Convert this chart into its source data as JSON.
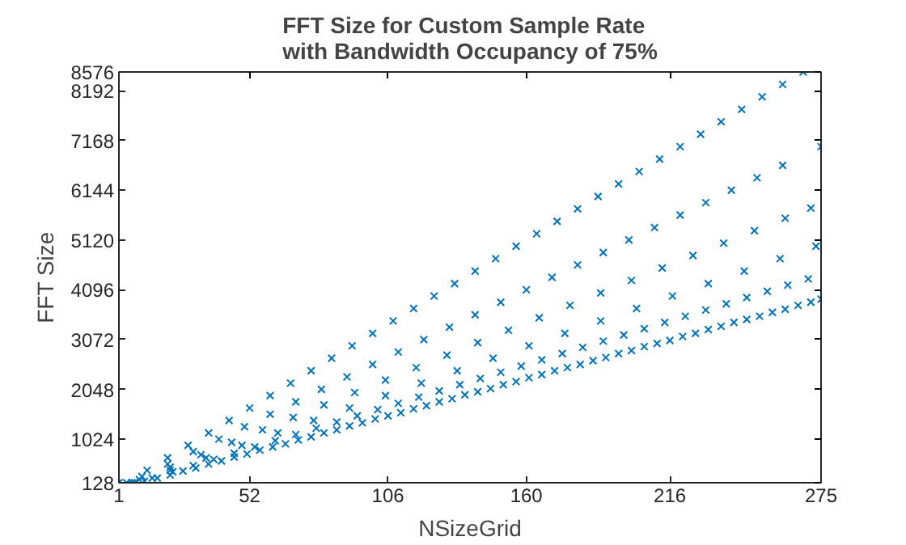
{
  "chart_data": {
    "type": "scatter",
    "title": "FFT Size for Custom Sample Rate\nwith Bandwidth Occupancy of 75%",
    "xlabel": "NSizeGrid",
    "ylabel": "FFT Size",
    "xlim": [
      1,
      275
    ],
    "ylim": [
      128,
      8576
    ],
    "xticks": [
      1,
      52,
      106,
      160,
      216,
      275
    ],
    "yticks": [
      128,
      1024,
      2048,
      3072,
      4096,
      5120,
      6144,
      7168,
      8192,
      8576
    ],
    "grid": false,
    "marker": "cross",
    "series": [
      {
        "color": "#0072bd",
        "x": [
          4,
          12,
          20,
          28,
          36,
          44,
          52,
          60,
          68,
          76,
          84,
          92,
          100,
          108,
          116,
          124,
          132,
          140,
          148,
          156,
          164,
          172,
          180,
          188,
          196,
          204,
          212,
          220,
          228,
          236,
          244,
          252,
          260,
          268,
          10,
          20,
          30,
          40,
          50,
          60,
          70,
          80,
          90,
          100,
          110,
          120,
          130,
          140,
          150,
          160,
          170,
          180,
          190,
          200,
          210,
          220,
          230,
          240,
          250,
          260,
          275,
          9,
          21,
          33,
          45,
          57,
          69,
          81,
          93,
          105,
          117,
          129,
          141,
          153,
          165,
          177,
          189,
          201,
          213,
          225,
          237,
          249,
          261,
          271,
          7,
          21,
          35,
          49,
          63,
          77,
          91,
          105,
          119,
          133,
          147,
          161,
          175,
          189,
          203,
          217,
          231,
          245,
          259,
          273,
          6,
          14,
          22,
          30,
          38,
          46,
          54,
          62,
          70,
          78,
          86,
          94,
          102,
          110,
          118,
          126,
          134,
          142,
          150,
          158,
          166,
          174,
          182,
          190,
          198,
          206,
          214,
          222,
          230,
          238,
          246,
          254,
          262,
          270,
          1,
          6,
          11,
          16,
          21,
          26,
          31,
          36,
          41,
          46,
          51,
          56,
          61,
          66,
          71,
          76,
          81,
          86,
          91,
          96,
          101,
          106,
          111,
          116,
          121,
          126,
          131,
          136,
          141,
          146,
          151,
          156,
          161,
          166,
          171,
          176,
          181,
          186,
          191,
          196,
          201,
          206,
          211,
          216,
          221,
          226,
          231,
          236,
          241,
          246,
          251,
          256,
          261,
          266,
          271,
          275
        ],
        "values": [
          128,
          384,
          640,
          896,
          1152,
          1408,
          1664,
          1920,
          2176,
          2432,
          2688,
          2944,
          3200,
          3456,
          3712,
          3968,
          4224,
          4480,
          4736,
          4992,
          5248,
          5504,
          5760,
          6016,
          6272,
          6528,
          6784,
          7040,
          7296,
          7552,
          7808,
          8064,
          8320,
          8576,
          256,
          512,
          768,
          1024,
          1280,
          1536,
          1792,
          2048,
          2304,
          2560,
          2816,
          3072,
          3328,
          3584,
          3840,
          4096,
          4352,
          4608,
          4864,
          5120,
          5376,
          5632,
          5888,
          6144,
          6400,
          6656,
          7040,
          192,
          448,
          704,
          960,
          1216,
          1472,
          1728,
          1984,
          2240,
          2496,
          2752,
          3008,
          3264,
          3520,
          3776,
          4032,
          4288,
          4544,
          4800,
          5056,
          5312,
          5568,
          5776,
          128,
          384,
          640,
          896,
          1152,
          1408,
          1664,
          1920,
          2176,
          2432,
          2688,
          2944,
          3200,
          3456,
          3712,
          3968,
          4224,
          4480,
          4736,
          4992,
          128,
          224,
          352,
          480,
          608,
          736,
          864,
          992,
          1120,
          1248,
          1376,
          1504,
          1632,
          1760,
          1888,
          2016,
          2144,
          2272,
          2400,
          2528,
          2656,
          2784,
          2912,
          3040,
          3168,
          3296,
          3424,
          3552,
          3680,
          3808,
          3936,
          4064,
          4192,
          4320,
          128,
          128,
          160,
          224,
          288,
          368,
          432,
          512,
          576,
          656,
          720,
          800,
          864,
          928,
          1008,
          1072,
          1152,
          1216,
          1296,
          1360,
          1440,
          1504,
          1568,
          1648,
          1712,
          1792,
          1856,
          1936,
          2000,
          2064,
          2144,
          2208,
          2288,
          2352,
          2432,
          2496,
          2560,
          2640,
          2704,
          2784,
          2848,
          2928,
          2992,
          3056,
          3136,
          3200,
          3280,
          3344,
          3424,
          3488,
          3552,
          3632,
          3696,
          3776,
          3840,
          3904
        ]
      }
    ]
  }
}
